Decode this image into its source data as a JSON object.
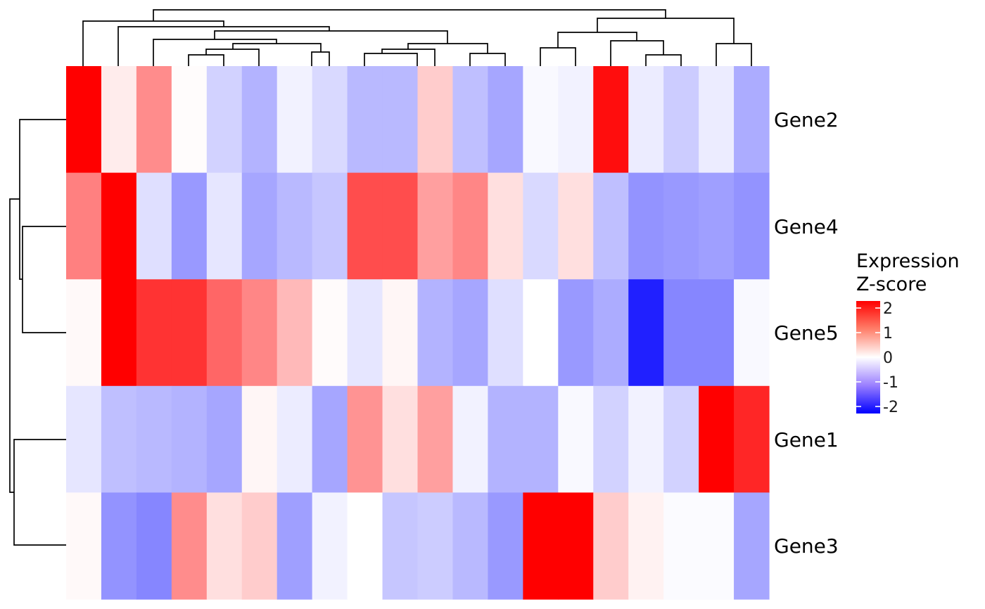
{
  "chart_data": {
    "type": "heatmap",
    "rows": [
      "Gene2",
      "Gene4",
      "Gene5",
      "Gene1",
      "Gene3"
    ],
    "values": [
      [
        2.3,
        0.15,
        0.9,
        0.02,
        -0.35,
        -0.6,
        -0.1,
        -0.3,
        -0.55,
        -0.55,
        0.4,
        -0.5,
        -0.7,
        -0.05,
        -0.1,
        1.9,
        -0.15,
        -0.4,
        -0.15,
        -0.65
      ],
      [
        1.0,
        2.4,
        -0.25,
        -0.8,
        -0.2,
        -0.7,
        -0.55,
        -0.45,
        1.4,
        1.4,
        0.75,
        0.95,
        0.25,
        -0.3,
        0.25,
        -0.5,
        -0.85,
        -0.8,
        -0.75,
        -0.85
      ],
      [
        0.05,
        2.0,
        1.6,
        1.6,
        1.2,
        0.95,
        0.55,
        0.03,
        -0.2,
        0.07,
        -0.6,
        -0.7,
        -0.25,
        0.0,
        -0.8,
        -0.65,
        -1.75,
        -0.95,
        -0.95,
        -0.05
      ],
      [
        -0.2,
        -0.5,
        -0.55,
        -0.6,
        -0.7,
        0.07,
        -0.15,
        -0.7,
        0.85,
        0.25,
        0.75,
        -0.1,
        -0.6,
        -0.6,
        -0.05,
        -0.35,
        -0.1,
        -0.35,
        2.4,
        1.7
      ],
      [
        0.05,
        -0.85,
        -0.95,
        0.9,
        0.25,
        0.4,
        -0.75,
        -0.1,
        0.0,
        -0.45,
        -0.4,
        -0.55,
        -0.8,
        2.5,
        2.0,
        0.4,
        0.1,
        -0.03,
        -0.03,
        -0.7
      ]
    ],
    "color_scale": {
      "min": -2,
      "mid": 0,
      "max": 2,
      "low": "#0000ff",
      "midColor": "#ffffff",
      "high": "#ff0000"
    },
    "legend": {
      "title_line1": "Expression",
      "title_line2": "Z-score",
      "ticks": [
        2,
        1,
        0,
        -1,
        -2
      ],
      "tick_labels": [
        "2",
        "1",
        "0",
        "-1",
        "-2"
      ],
      "position": "right"
    },
    "column_dendrogram": true,
    "row_dendrogram": true,
    "grid": false
  }
}
